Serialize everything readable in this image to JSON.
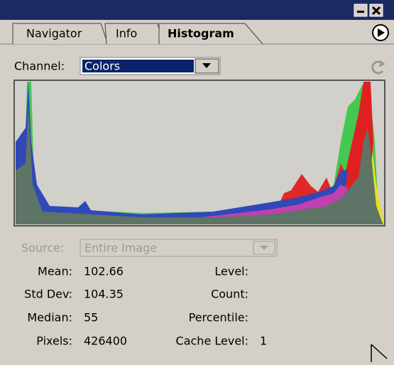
{
  "tabs": [
    "Navigator",
    "Info",
    "Histogram"
  ],
  "channel": {
    "label": "Channel:",
    "value": "Colors"
  },
  "source": {
    "label": "Source:",
    "value": "Entire Image"
  },
  "stats_left": [
    {
      "label": "Mean:",
      "value": "102.66"
    },
    {
      "label": "Std Dev:",
      "value": "104.35"
    },
    {
      "label": "Median:",
      "value": "55"
    },
    {
      "label": "Pixels:",
      "value": "426400"
    }
  ],
  "stats_right": [
    {
      "label": "Level:",
      "value": null
    },
    {
      "label": "Count:",
      "value": null
    },
    {
      "label": "Percentile:",
      "value": null
    },
    {
      "label": "Cache Level:",
      "value": "1"
    }
  ]
}
